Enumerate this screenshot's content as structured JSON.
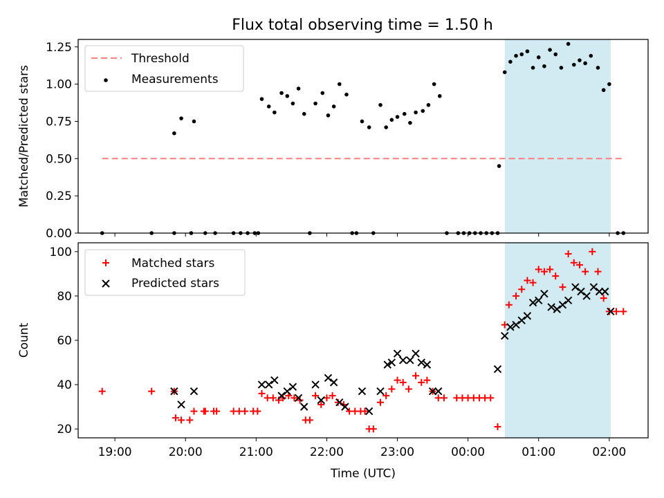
{
  "title": "Flux total observing time = 1.50 h",
  "chart_data": [
    {
      "type": "scatter",
      "ylabel": "Matched/Predicted stars",
      "ylim": [
        0,
        1.3
      ],
      "y_ticks": [
        0,
        0.25,
        0.5,
        0.75,
        1.0,
        1.25
      ],
      "y_tick_labels": [
        "0.00",
        "0.25",
        "0.50",
        "0.75",
        "1.00",
        "1.25"
      ],
      "legend_position": "top-left",
      "legend": [
        "Threshold",
        "Measurements"
      ],
      "threshold": {
        "name": "Threshold",
        "color": "#ff7f7f",
        "y": 0.5,
        "x_start": 18.82,
        "x_end": 26.2
      },
      "highlight_span": {
        "x_start": 24.52,
        "x_end": 26.02,
        "color": "#add8e6"
      },
      "series": [
        {
          "name": "Measurements",
          "color": "#000000",
          "points": [
            [
              18.82,
              0
            ],
            [
              19.52,
              0
            ],
            [
              19.84,
              0
            ],
            [
              19.84,
              0.67
            ],
            [
              19.94,
              0.77
            ],
            [
              20.08,
              0
            ],
            [
              20.12,
              0.75
            ],
            [
              20.28,
              0
            ],
            [
              20.42,
              0
            ],
            [
              20.68,
              0
            ],
            [
              20.78,
              0
            ],
            [
              20.88,
              0
            ],
            [
              20.98,
              0
            ],
            [
              21.03,
              0
            ],
            [
              21.08,
              0.9
            ],
            [
              21.18,
              0.85
            ],
            [
              21.26,
              0.81
            ],
            [
              21.36,
              0.94
            ],
            [
              21.44,
              0.92
            ],
            [
              21.52,
              0.87
            ],
            [
              21.6,
              0.97
            ],
            [
              21.68,
              0.8
            ],
            [
              21.76,
              0
            ],
            [
              21.84,
              0.87
            ],
            [
              21.94,
              0.94
            ],
            [
              22.02,
              0.79
            ],
            [
              22.1,
              0.85
            ],
            [
              22.18,
              1.0
            ],
            [
              22.28,
              0.93
            ],
            [
              22.36,
              0
            ],
            [
              22.42,
              0
            ],
            [
              22.5,
              0.75
            ],
            [
              22.6,
              0.71
            ],
            [
              22.66,
              0
            ],
            [
              22.76,
              0.86
            ],
            [
              22.84,
              0.71
            ],
            [
              22.92,
              0.76
            ],
            [
              23.0,
              0.78
            ],
            [
              23.1,
              0.8
            ],
            [
              23.18,
              0.74
            ],
            [
              23.26,
              0.81
            ],
            [
              23.36,
              0.82
            ],
            [
              23.44,
              0.86
            ],
            [
              23.52,
              1.0
            ],
            [
              23.6,
              0.92
            ],
            [
              23.7,
              0
            ],
            [
              23.86,
              0
            ],
            [
              23.94,
              0
            ],
            [
              24.02,
              0
            ],
            [
              24.1,
              0
            ],
            [
              24.18,
              0
            ],
            [
              24.26,
              0
            ],
            [
              24.34,
              0
            ],
            [
              24.42,
              0
            ],
            [
              24.44,
              0.45
            ],
            [
              24.52,
              1.08
            ],
            [
              24.6,
              1.15
            ],
            [
              24.68,
              1.19
            ],
            [
              24.76,
              1.2
            ],
            [
              24.84,
              1.22
            ],
            [
              24.92,
              1.11
            ],
            [
              25.0,
              1.18
            ],
            [
              25.08,
              1.12
            ],
            [
              25.16,
              1.23
            ],
            [
              25.24,
              1.2
            ],
            [
              25.32,
              1.11
            ],
            [
              25.42,
              1.27
            ],
            [
              25.5,
              1.13
            ],
            [
              25.58,
              1.16
            ],
            [
              25.66,
              1.14
            ],
            [
              25.74,
              1.19
            ],
            [
              25.84,
              1.11
            ],
            [
              25.92,
              0.96
            ],
            [
              26.0,
              1.0
            ],
            [
              26.12,
              0
            ],
            [
              26.2,
              0
            ]
          ]
        }
      ]
    },
    {
      "type": "scatter",
      "xlabel": "Time (UTC)",
      "ylabel": "Count",
      "ylim": [
        16,
        104
      ],
      "xlim": [
        18.48,
        26.55
      ],
      "x_ticks": [
        19,
        20,
        21,
        22,
        23,
        24,
        25,
        26
      ],
      "x_tick_labels": [
        "19:00",
        "20:00",
        "21:00",
        "22:00",
        "23:00",
        "00:00",
        "01:00",
        "02:00"
      ],
      "y_ticks": [
        20,
        40,
        60,
        80,
        100
      ],
      "y_tick_labels": [
        "20",
        "40",
        "60",
        "80",
        "100"
      ],
      "legend_position": "top-left",
      "legend": [
        "Matched stars",
        "Predicted stars"
      ],
      "highlight_span": {
        "x_start": 24.52,
        "x_end": 26.02,
        "color": "#add8e6"
      },
      "series": [
        {
          "name": "Matched stars",
          "marker": "+",
          "color": "#ff0000",
          "points": [
            [
              18.82,
              37
            ],
            [
              19.52,
              37
            ],
            [
              19.84,
              37
            ],
            [
              19.86,
              25
            ],
            [
              19.94,
              24
            ],
            [
              20.06,
              24
            ],
            [
              20.12,
              28
            ],
            [
              20.26,
              28
            ],
            [
              20.28,
              28
            ],
            [
              20.4,
              28
            ],
            [
              20.44,
              28
            ],
            [
              20.68,
              28
            ],
            [
              20.76,
              28
            ],
            [
              20.84,
              28
            ],
            [
              20.96,
              28
            ],
            [
              21.02,
              28
            ],
            [
              21.08,
              36
            ],
            [
              21.16,
              34
            ],
            [
              21.24,
              34
            ],
            [
              21.32,
              33
            ],
            [
              21.38,
              34
            ],
            [
              21.46,
              35
            ],
            [
              21.54,
              34
            ],
            [
              21.62,
              33
            ],
            [
              21.7,
              24
            ],
            [
              21.76,
              24
            ],
            [
              21.84,
              35
            ],
            [
              21.92,
              31
            ],
            [
              22.0,
              34
            ],
            [
              22.08,
              35
            ],
            [
              22.16,
              32
            ],
            [
              22.24,
              31
            ],
            [
              22.32,
              28
            ],
            [
              22.4,
              28
            ],
            [
              22.48,
              28
            ],
            [
              22.54,
              28
            ],
            [
              22.6,
              20
            ],
            [
              22.66,
              20
            ],
            [
              22.76,
              32
            ],
            [
              22.84,
              35
            ],
            [
              22.92,
              38
            ],
            [
              23.0,
              42
            ],
            [
              23.08,
              41
            ],
            [
              23.16,
              38
            ],
            [
              23.26,
              44
            ],
            [
              23.34,
              41
            ],
            [
              23.42,
              42
            ],
            [
              23.5,
              37
            ],
            [
              23.58,
              34
            ],
            [
              23.66,
              34
            ],
            [
              23.84,
              34
            ],
            [
              23.92,
              34
            ],
            [
              24.0,
              34
            ],
            [
              24.08,
              34
            ],
            [
              24.16,
              34
            ],
            [
              24.24,
              34
            ],
            [
              24.32,
              34
            ],
            [
              24.42,
              21
            ],
            [
              24.52,
              67
            ],
            [
              24.58,
              76
            ],
            [
              24.68,
              80
            ],
            [
              24.76,
              83
            ],
            [
              24.84,
              87
            ],
            [
              24.92,
              86
            ],
            [
              25.0,
              92
            ],
            [
              25.08,
              91
            ],
            [
              25.16,
              92
            ],
            [
              25.24,
              89
            ],
            [
              25.34,
              84
            ],
            [
              25.42,
              99
            ],
            [
              25.5,
              95
            ],
            [
              25.58,
              94
            ],
            [
              25.66,
              91
            ],
            [
              25.76,
              100
            ],
            [
              25.84,
              91
            ],
            [
              25.92,
              79
            ],
            [
              26.0,
              73
            ],
            [
              26.1,
              73
            ],
            [
              26.2,
              73
            ]
          ]
        },
        {
          "name": "Predicted stars",
          "marker": "x",
          "color": "#000000",
          "points": [
            [
              19.84,
              37
            ],
            [
              19.94,
              31
            ],
            [
              20.12,
              37
            ],
            [
              21.08,
              40
            ],
            [
              21.18,
              40
            ],
            [
              21.26,
              42
            ],
            [
              21.36,
              35
            ],
            [
              21.44,
              37
            ],
            [
              21.52,
              39
            ],
            [
              21.6,
              34
            ],
            [
              21.68,
              30
            ],
            [
              21.84,
              40
            ],
            [
              21.92,
              33
            ],
            [
              22.02,
              43
            ],
            [
              22.1,
              41
            ],
            [
              22.18,
              32
            ],
            [
              22.26,
              30
            ],
            [
              22.5,
              37
            ],
            [
              22.6,
              28
            ],
            [
              22.76,
              37
            ],
            [
              22.86,
              49
            ],
            [
              22.92,
              50
            ],
            [
              23.0,
              54
            ],
            [
              23.08,
              51
            ],
            [
              23.18,
              51
            ],
            [
              23.26,
              54
            ],
            [
              23.34,
              50
            ],
            [
              23.42,
              49
            ],
            [
              23.5,
              37
            ],
            [
              23.58,
              37
            ],
            [
              24.42,
              47
            ],
            [
              24.52,
              62
            ],
            [
              24.6,
              66
            ],
            [
              24.68,
              67
            ],
            [
              24.76,
              69
            ],
            [
              24.84,
              71
            ],
            [
              24.92,
              77
            ],
            [
              25.0,
              78
            ],
            [
              25.08,
              81
            ],
            [
              25.18,
              75
            ],
            [
              25.26,
              74
            ],
            [
              25.34,
              76
            ],
            [
              25.42,
              78
            ],
            [
              25.52,
              84
            ],
            [
              25.6,
              82
            ],
            [
              25.68,
              80
            ],
            [
              25.78,
              84
            ],
            [
              25.86,
              82
            ],
            [
              25.94,
              82
            ],
            [
              26.02,
              73
            ]
          ]
        }
      ]
    }
  ]
}
